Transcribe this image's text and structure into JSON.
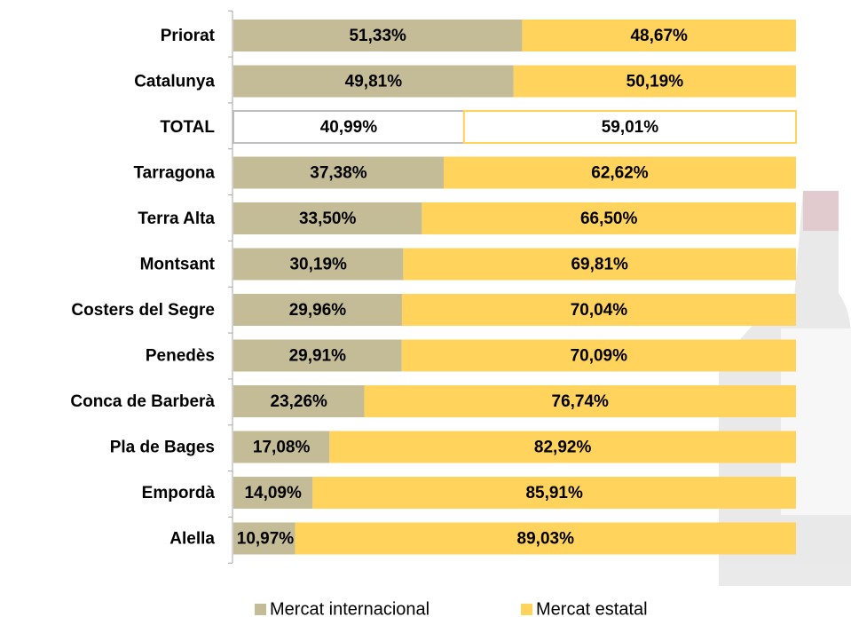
{
  "chart_data": {
    "type": "stacked-bar-horizontal",
    "categories": [
      "Priorat",
      "Catalunya",
      "TOTAL",
      "Tarragona",
      "Terra Alta",
      "Montsant",
      "Costers del Segre",
      "Penedès",
      "Conca de Barberà",
      "Pla de Bages",
      "Empordà",
      "Alella"
    ],
    "series": [
      {
        "name": "Mercat internacional",
        "color": "#c4bc96",
        "values": [
          51.33,
          49.81,
          40.99,
          37.38,
          33.5,
          30.19,
          29.96,
          29.91,
          23.26,
          17.08,
          14.09,
          10.97
        ],
        "value_labels": [
          "51,33%",
          "49,81%",
          "40,99%",
          "37,38%",
          "33,50%",
          "30,19%",
          "29,96%",
          "29,91%",
          "23,26%",
          "17,08%",
          "14,09%",
          "10,97%"
        ]
      },
      {
        "name": "Mercat estatal",
        "color": "#ffd35c",
        "values": [
          48.67,
          50.19,
          59.01,
          62.62,
          66.5,
          69.81,
          70.04,
          70.09,
          76.74,
          82.92,
          85.91,
          89.03
        ],
        "value_labels": [
          "48,67%",
          "50,19%",
          "59,01%",
          "62,62%",
          "66,50%",
          "69,81%",
          "70,04%",
          "70,09%",
          "76,74%",
          "82,92%",
          "85,91%",
          "89,03%"
        ]
      }
    ],
    "xlim": [
      0,
      100
    ],
    "outlined_category": 2,
    "legend": "bottom"
  }
}
